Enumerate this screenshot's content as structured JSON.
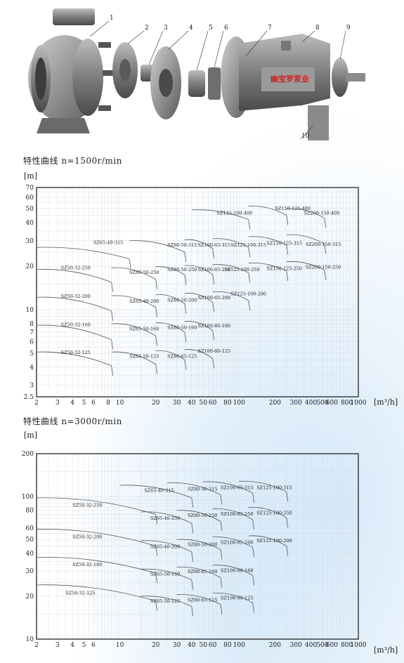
{
  "figure": {
    "callouts": [
      "1",
      "2",
      "3",
      "4",
      "5",
      "6",
      "7",
      "8",
      "9",
      "10"
    ],
    "brand_label": "幽宝罗泵业"
  },
  "colors": {
    "curve": "#555555",
    "grid": "#cfd9e3",
    "frame": "#111111",
    "pump_metal": "#8a8a8a",
    "brand_red": "#cc2222"
  },
  "chart_data": [
    {
      "type": "line",
      "title": "特性曲线 n=1500r/min",
      "ylabel": "[m]",
      "xlabel": "[m³/h]",
      "xscale": "log",
      "yscale": "log",
      "xlim": [
        2,
        1000
      ],
      "ylim": [
        2.5,
        70
      ],
      "xticks": [
        "2",
        "3",
        "4",
        "5",
        "6",
        "8",
        "10",
        "20",
        "30",
        "40",
        "50",
        "60",
        "80",
        "100",
        "200",
        "300",
        "400",
        "500",
        "600",
        "800",
        "1000"
      ],
      "yticks": [
        "2.5",
        "3",
        "4",
        "5",
        "6",
        "7",
        "8",
        "10",
        "20",
        "30",
        "40",
        "50",
        "60",
        "70"
      ],
      "series": [
        {
          "name": "SZ65-40-315",
          "x": [
            2,
            12
          ],
          "y": [
            27,
            22.5
          ]
        },
        {
          "name": "SZ50-32-250",
          "x": [
            2,
            8.5
          ],
          "y": [
            19,
            15.5
          ]
        },
        {
          "name": "SZ50-32-200",
          "x": [
            2,
            8.5
          ],
          "y": [
            12.2,
            9.8
          ]
        },
        {
          "name": "SZ50-32-160",
          "x": [
            2,
            8.5
          ],
          "y": [
            7.8,
            6.2
          ]
        },
        {
          "name": "SZ50-32-125",
          "x": [
            2,
            8.5
          ],
          "y": [
            5.1,
            4.1
          ]
        },
        {
          "name": "SZ80-50-250",
          "x": [
            8.5,
            20
          ],
          "y": [
            19.5,
            16.2
          ]
        },
        {
          "name": "SZ65-40-200",
          "x": [
            8.5,
            20
          ],
          "y": [
            12.5,
            10.4
          ]
        },
        {
          "name": "SZ65-50-160",
          "x": [
            8.5,
            20
          ],
          "y": [
            8,
            6.6
          ]
        },
        {
          "name": "SZ65-50-125",
          "x": [
            8.5,
            20
          ],
          "y": [
            5.1,
            4.2
          ]
        },
        {
          "name": "SZ80-50-315",
          "x": [
            12,
            35
          ],
          "y": [
            30,
            25
          ]
        },
        {
          "name": "SZ80-50-200",
          "x": [
            20,
            35
          ],
          "y": [
            12.7,
            11
          ]
        },
        {
          "name": "SZ80-50-160",
          "x": [
            20,
            35
          ],
          "y": [
            8.1,
            7
          ]
        },
        {
          "name": "SZ80-65-125",
          "x": [
            20,
            35
          ],
          "y": [
            5.2,
            4.5
          ]
        },
        {
          "name": "SZ80-50-250",
          "x": [
            20,
            35
          ],
          "y": [
            19.8,
            17.4
          ]
        },
        {
          "name": "SZ100-65-315",
          "x": [
            35,
            60
          ],
          "y": [
            30.5,
            26.5
          ]
        },
        {
          "name": "SZ100-65-250",
          "x": [
            35,
            60
          ],
          "y": [
            20.2,
            17.5
          ]
        },
        {
          "name": "SZ100-65-200",
          "x": [
            35,
            60
          ],
          "y": [
            13,
            11.3
          ]
        },
        {
          "name": "SZ100-80-160",
          "x": [
            35,
            60
          ],
          "y": [
            8.3,
            7.2
          ]
        },
        {
          "name": "SZ100-80-125",
          "x": [
            35,
            60
          ],
          "y": [
            5.3,
            4.6
          ]
        },
        {
          "name": "SZ125-100-400",
          "x": [
            40,
            120
          ],
          "y": [
            49,
            42
          ]
        },
        {
          "name": "SZ125-100-315",
          "x": [
            60,
            120
          ],
          "y": [
            31,
            27
          ]
        },
        {
          "name": "SZ125-100-250",
          "x": [
            60,
            120
          ],
          "y": [
            20.5,
            18
          ]
        },
        {
          "name": "SZ125-100-200",
          "x": [
            60,
            120
          ],
          "y": [
            13.3,
            11.6
          ]
        },
        {
          "name": "SZ150-125-400",
          "x": [
            120,
            250
          ],
          "y": [
            52,
            45
          ]
        },
        {
          "name": "SZ150-125-315",
          "x": [
            120,
            250
          ],
          "y": [
            32,
            28
          ]
        },
        {
          "name": "SZ150-125-250",
          "x": [
            120,
            250
          ],
          "y": [
            21,
            18.5
          ]
        },
        {
          "name": "SZ200-150-400",
          "x": [
            250,
            520
          ],
          "y": [
            50,
            43
          ]
        },
        {
          "name": "SZ200-150-315",
          "x": [
            250,
            520
          ],
          "y": [
            33,
            28.5
          ]
        },
        {
          "name": "SZ200-150-250",
          "x": [
            250,
            520
          ],
          "y": [
            21.5,
            18.8
          ]
        }
      ],
      "labels": [
        {
          "text": "SZ65-40-315",
          "x": 6,
          "y": 28.5
        },
        {
          "text": "SZ50-32-250",
          "x": 3.2,
          "y": 19
        },
        {
          "text": "SZ50-32-200",
          "x": 3.2,
          "y": 12.1
        },
        {
          "text": "SZ50-32-160",
          "x": 3.2,
          "y": 7.7
        },
        {
          "text": "SZ50-32-125",
          "x": 3.2,
          "y": 4.95
        },
        {
          "text": "SZ80-50-250",
          "x": 12,
          "y": 17.7
        },
        {
          "text": "SZ65-40-200",
          "x": 12,
          "y": 11.2
        },
        {
          "text": "SZ65-50-160",
          "x": 12,
          "y": 7.2
        },
        {
          "text": "SZ65-50-125",
          "x": 12,
          "y": 4.65
        },
        {
          "text": "SZ80-50-315",
          "x": 25,
          "y": 27.4
        },
        {
          "text": "SZ80-50-250",
          "x": 25,
          "y": 18.5
        },
        {
          "text": "SZ80-50-200",
          "x": 25,
          "y": 11.4
        },
        {
          "text": "SZ80-50-160",
          "x": 25,
          "y": 7.35
        },
        {
          "text": "SZ80-65-125",
          "x": 25,
          "y": 4.65
        },
        {
          "text": "SZ100-65-315",
          "x": 45,
          "y": 27.4
        },
        {
          "text": "SZ100-65-250",
          "x": 45,
          "y": 18.5
        },
        {
          "text": "SZ100-65-200",
          "x": 45,
          "y": 11.8
        },
        {
          "text": "SZ100-80-160",
          "x": 45,
          "y": 7.55
        },
        {
          "text": "SZ100-80-125",
          "x": 45,
          "y": 5.05
        },
        {
          "text": "SZ125-100-400",
          "x": 65,
          "y": 45.5
        },
        {
          "text": "SZ125-100-315",
          "x": 85,
          "y": 27.4
        },
        {
          "text": "SZ125-100-250",
          "x": 75,
          "y": 18.5
        },
        {
          "text": "SZ125-100-200",
          "x": 85,
          "y": 12.6
        },
        {
          "text": "SZ150-125-400",
          "x": 200,
          "y": 49
        },
        {
          "text": "SZ150-125-315",
          "x": 170,
          "y": 28.2
        },
        {
          "text": "SZ150-125-250",
          "x": 170,
          "y": 18.8
        },
        {
          "text": "SZ200-150-400",
          "x": 350,
          "y": 45.5
        },
        {
          "text": "SZ200-150-315",
          "x": 360,
          "y": 27.6
        },
        {
          "text": "SZ200-150-250",
          "x": 360,
          "y": 19.2
        }
      ]
    },
    {
      "type": "line",
      "title": "特性曲线 n=3000r/min",
      "ylabel": "[m]",
      "xlabel": "[m³/h]",
      "xscale": "log",
      "yscale": "log",
      "xlim": [
        2,
        1000
      ],
      "ylim": [
        10,
        200
      ],
      "xticks": [
        "2",
        "3",
        "4",
        "5",
        "6",
        "10",
        "20",
        "30",
        "40",
        "50",
        "60",
        "80",
        "100",
        "200",
        "300",
        "400",
        "500",
        "600",
        "800",
        "1000"
      ],
      "yticks": [
        "10",
        "20",
        "30",
        "40",
        "50",
        "60",
        "80",
        "100",
        "200"
      ],
      "series": [
        {
          "name": "SZ50-32-250",
          "x": [
            2,
            20
          ],
          "y": [
            98,
            75
          ]
        },
        {
          "name": "SZ50-32-200",
          "x": [
            2,
            20
          ],
          "y": [
            59,
            45
          ]
        },
        {
          "name": "SZ50-32-160",
          "x": [
            2,
            20
          ],
          "y": [
            37.5,
            29
          ]
        },
        {
          "name": "SZ50-32-125",
          "x": [
            2,
            20
          ],
          "y": [
            24,
            18.5
          ]
        },
        {
          "name": "SZ65-40-315",
          "x": [
            10,
            40
          ],
          "y": [
            120,
            98
          ]
        },
        {
          "name": "SZ65-40-250",
          "x": [
            15,
            40
          ],
          "y": [
            78,
            65
          ]
        },
        {
          "name": "SZ65-40-200",
          "x": [
            15,
            40
          ],
          "y": [
            49,
            41
          ]
        },
        {
          "name": "SZ65-50-160",
          "x": [
            15,
            40
          ],
          "y": [
            31,
            26
          ]
        },
        {
          "name": "SZ65-50-125",
          "x": [
            15,
            40
          ],
          "y": [
            20,
            17
          ]
        },
        {
          "name": "SZ80-50-315",
          "x": [
            25,
            70
          ],
          "y": [
            125,
            103
          ]
        },
        {
          "name": "SZ80-50-250",
          "x": [
            30,
            70
          ],
          "y": [
            80,
            67
          ]
        },
        {
          "name": "SZ80-50-200",
          "x": [
            30,
            70
          ],
          "y": [
            50,
            42.5
          ]
        },
        {
          "name": "SZ80-65-160",
          "x": [
            30,
            70
          ],
          "y": [
            32,
            27
          ]
        },
        {
          "name": "SZ80-65-125",
          "x": [
            30,
            70
          ],
          "y": [
            20.5,
            17.5
          ]
        },
        {
          "name": "SZ100-65-315",
          "x": [
            50,
            130
          ],
          "y": [
            127,
            106
          ]
        },
        {
          "name": "SZ100-65-250",
          "x": [
            60,
            130
          ],
          "y": [
            82,
            69
          ]
        },
        {
          "name": "SZ100-65-200",
          "x": [
            60,
            130
          ],
          "y": [
            52,
            44
          ]
        },
        {
          "name": "SZ100-80-160",
          "x": [
            60,
            130
          ],
          "y": [
            33,
            28
          ]
        },
        {
          "name": "SZ100-80-125",
          "x": [
            60,
            130
          ],
          "y": [
            21,
            18
          ]
        },
        {
          "name": "SZ125-100-315",
          "x": [
            100,
            250
          ],
          "y": [
            128,
            108
          ]
        },
        {
          "name": "SZ125-100-250",
          "x": [
            120,
            250
          ],
          "y": [
            84,
            71
          ]
        },
        {
          "name": "SZ125-100-200",
          "x": [
            120,
            250
          ],
          "y": [
            53,
            45
          ]
        }
      ],
      "labels": [
        {
          "text": "SZ50-32-250",
          "x": 4,
          "y": 85
        },
        {
          "text": "SZ50-32-200",
          "x": 4,
          "y": 51
        },
        {
          "text": "SZ50-32-160",
          "x": 4,
          "y": 32.5
        },
        {
          "text": "SZ50-32-125",
          "x": 3.5,
          "y": 20.5
        },
        {
          "text": "SZ65-40-315",
          "x": 16,
          "y": 108
        },
        {
          "text": "SZ65-40-250",
          "x": 18,
          "y": 69
        },
        {
          "text": "SZ65-40-200",
          "x": 18,
          "y": 43.5
        },
        {
          "text": "SZ65-50-160",
          "x": 18,
          "y": 28
        },
        {
          "text": "SZ65-50-125",
          "x": 18,
          "y": 18
        },
        {
          "text": "SZ80-50-315",
          "x": 37,
          "y": 110
        },
        {
          "text": "SZ80-50-250",
          "x": 37,
          "y": 72
        },
        {
          "text": "SZ80-50-200",
          "x": 37,
          "y": 45
        },
        {
          "text": "SZ80-65-160",
          "x": 37,
          "y": 29
        },
        {
          "text": "SZ80-65-125",
          "x": 37,
          "y": 18.3
        },
        {
          "text": "SZ100-65-315",
          "x": 70,
          "y": 113
        },
        {
          "text": "SZ100-65-250",
          "x": 70,
          "y": 73.5
        },
        {
          "text": "SZ100-65-200",
          "x": 70,
          "y": 46.5
        },
        {
          "text": "SZ100-80-160",
          "x": 70,
          "y": 29.5
        },
        {
          "text": "SZ100-80-125",
          "x": 70,
          "y": 19
        },
        {
          "text": "SZ125-100-315",
          "x": 140,
          "y": 113
        },
        {
          "text": "SZ125-100-250",
          "x": 140,
          "y": 75
        },
        {
          "text": "SZ125-100-200",
          "x": 140,
          "y": 48
        }
      ]
    }
  ]
}
